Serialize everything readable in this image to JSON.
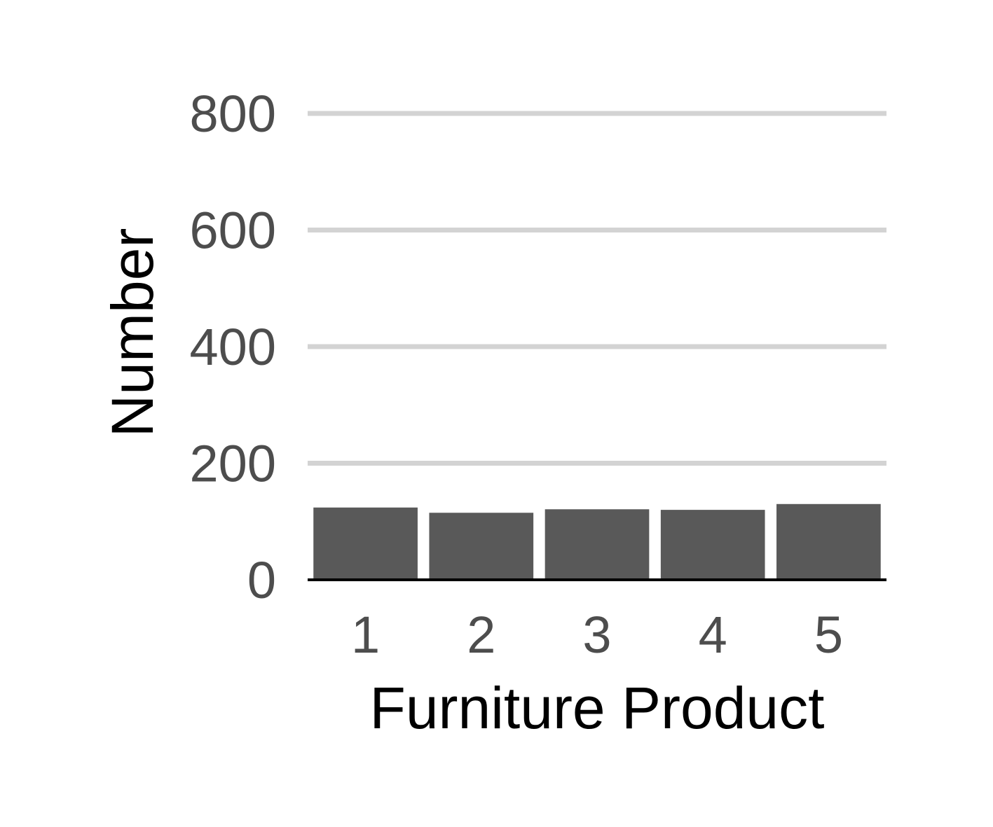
{
  "chart_data": {
    "type": "bar",
    "categories": [
      "1",
      "2",
      "3",
      "4",
      "5"
    ],
    "values": [
      124,
      115,
      121,
      120,
      130
    ],
    "title": "",
    "xlabel": "Furniture Product",
    "ylabel": "Number",
    "ylim": [
      0,
      800
    ],
    "yticks": [
      0,
      200,
      400,
      600,
      800
    ],
    "ytick_labels": [
      "0",
      "200",
      "400",
      "600",
      "800"
    ],
    "grid": "horizontal major gridlines",
    "legend": "none",
    "colors": {
      "bar": "#595959",
      "grid": "#d3d3d3",
      "tick_text": "#4d4d4d",
      "axis_title": "#000000",
      "baseline": "#000000"
    }
  }
}
